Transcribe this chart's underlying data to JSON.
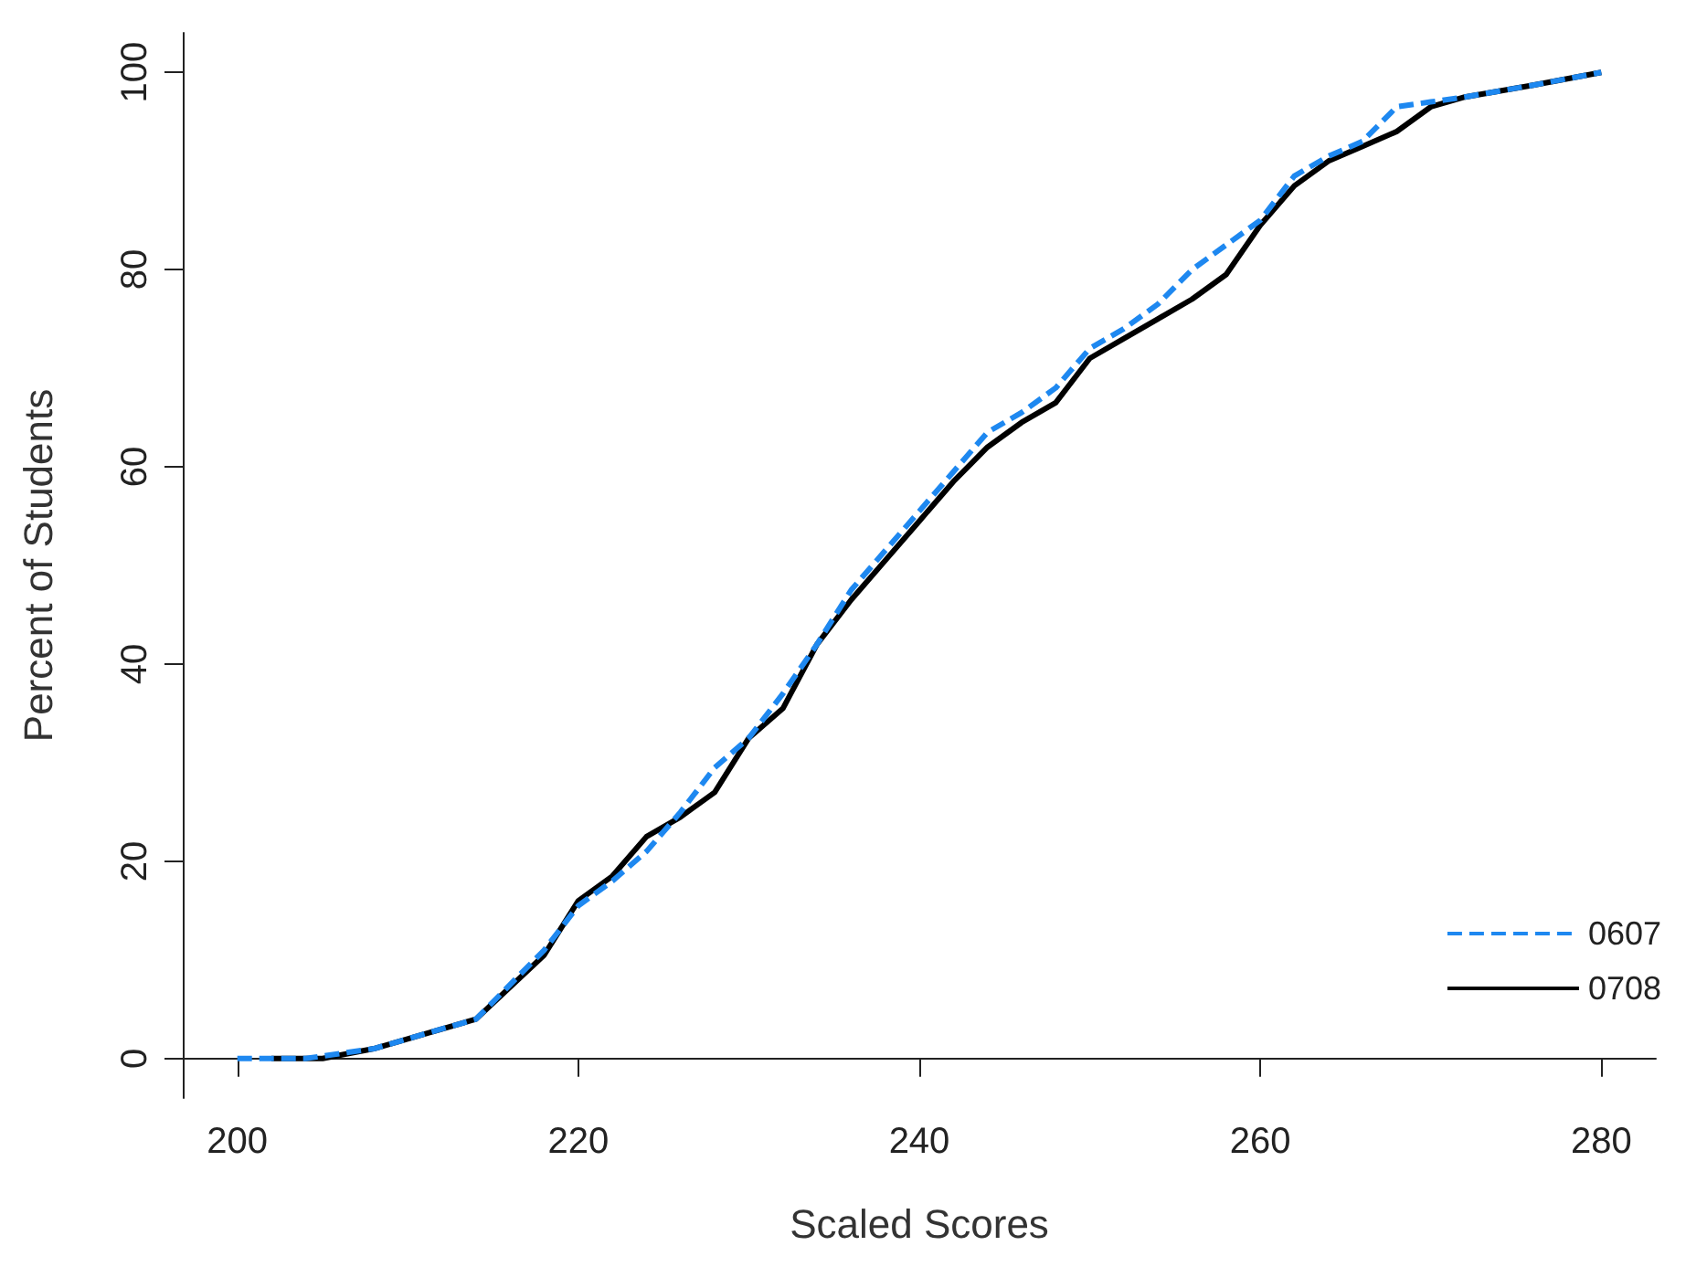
{
  "chart_data": {
    "type": "line",
    "xlabel": "Scaled Scores",
    "ylabel": "Percent of Students",
    "xlim": [
      196.8,
      283.2
    ],
    "ylim": [
      -4,
      104
    ],
    "xticks": [
      200,
      220,
      240,
      260,
      280
    ],
    "yticks": [
      0,
      20,
      40,
      60,
      80,
      100
    ],
    "grid": false,
    "legend": "bottom right",
    "marker": "none",
    "series": [
      {
        "name": "0607",
        "color": "#1e88f0",
        "line_style": "dashed",
        "x": [
          200,
          204,
          206,
          208,
          211,
          214,
          218,
          220,
          222,
          224,
          226,
          228,
          230,
          232,
          234,
          236,
          238,
          240,
          242,
          244,
          246,
          248,
          250,
          252,
          254,
          256,
          258,
          260,
          262,
          264,
          266,
          268,
          270,
          272,
          276,
          280
        ],
        "values": [
          0,
          0,
          0.5,
          1,
          2.5,
          4,
          11,
          15.5,
          18,
          21,
          25,
          29.5,
          32.5,
          37,
          42,
          47.5,
          51.5,
          55.5,
          59.5,
          63.5,
          65.5,
          68,
          72,
          74,
          76.5,
          80,
          82.5,
          85,
          89.5,
          91.5,
          93,
          96.5,
          97,
          97.5,
          98.7,
          100
        ]
      },
      {
        "name": "0708",
        "color": "#000000",
        "line_style": "solid",
        "x": [
          202,
          205,
          208,
          211,
          214,
          218,
          220,
          222,
          224,
          226,
          228,
          230,
          232,
          234,
          236,
          238,
          240,
          242,
          244,
          246,
          248,
          250,
          252,
          254,
          256,
          258,
          260,
          262,
          264,
          266,
          268,
          270,
          272,
          276,
          280
        ],
        "values": [
          0,
          0,
          1,
          2.5,
          4,
          10.5,
          16,
          18.5,
          22.5,
          24.5,
          27,
          32.5,
          35.5,
          42,
          46.5,
          50.5,
          54.5,
          58.5,
          62,
          64.5,
          66.5,
          71,
          73,
          75,
          77,
          79.5,
          84.5,
          88.5,
          91,
          92.5,
          94,
          96.5,
          97.5,
          98.7,
          100
        ]
      }
    ]
  }
}
